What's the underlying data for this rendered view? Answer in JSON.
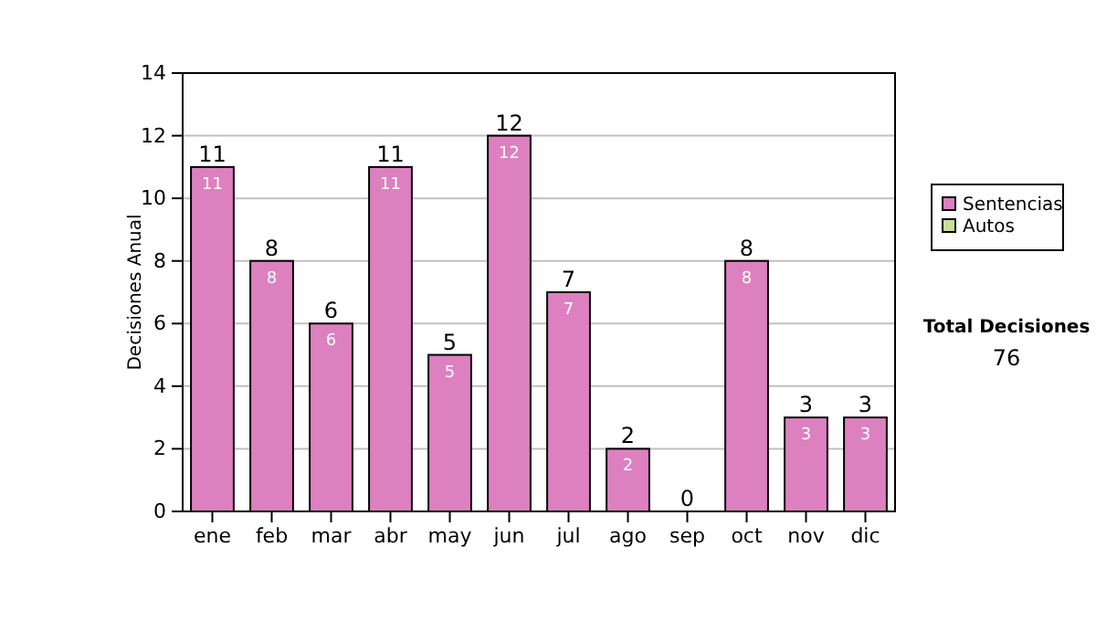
{
  "chart_data": {
    "type": "bar",
    "stacked": true,
    "ylabel": "Decisiones Anual",
    "categories": [
      "ene",
      "feb",
      "mar",
      "abr",
      "may",
      "jun",
      "jul",
      "ago",
      "sep",
      "oct",
      "nov",
      "dic"
    ],
    "series": [
      {
        "name": "Sentencias",
        "color": "#dd80c0",
        "values": [
          11,
          8,
          6,
          11,
          5,
          12,
          7,
          2,
          0,
          8,
          3,
          3
        ],
        "value_labels": [
          "11",
          "8",
          "6",
          "11",
          "5",
          "12",
          "7",
          "2",
          null,
          "8",
          "3",
          "3"
        ]
      },
      {
        "name": "Autos",
        "color": "#ccdd99",
        "values": [
          0,
          0,
          0,
          0,
          0,
          0,
          0,
          0,
          0,
          0,
          0,
          0
        ]
      }
    ],
    "totals": [
      "11",
      "8",
      "6",
      "11",
      "5",
      "12",
      "7",
      "2",
      "0",
      "8",
      "3",
      "3"
    ],
    "ylim": [
      0,
      14
    ],
    "yticks": [
      0,
      2,
      4,
      6,
      8,
      10,
      12,
      14
    ],
    "grid": "y",
    "legend": "right",
    "annotations": [
      "Total Decisiones",
      "76"
    ]
  }
}
